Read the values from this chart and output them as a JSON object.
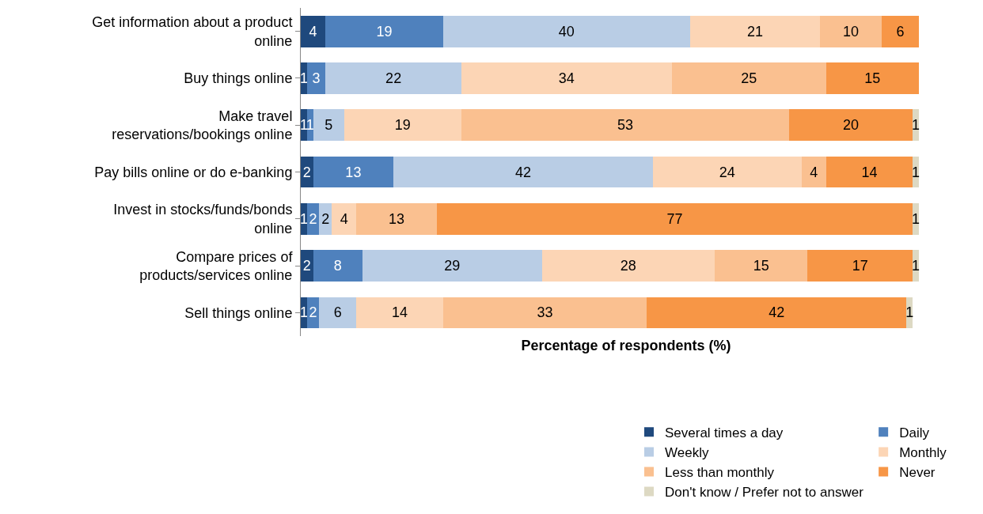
{
  "chart_data": {
    "type": "bar",
    "orientation": "horizontal",
    "stacked": true,
    "data_labels": true,
    "legend": "bottom",
    "tick_labels": "y",
    "xlabel": "Percentage of respondents (%)",
    "categories": [
      "Get information about a product online",
      "Buy things online",
      "Make travel reservations/bookings online",
      "Pay bills online or do e-banking",
      "Invest in stocks/funds/bonds online",
      "Compare prices of products/services online",
      "Sell things online"
    ],
    "series": [
      {
        "name": "Several times a day",
        "color": "#1f497d",
        "values": [
          4,
          1,
          1,
          2,
          1,
          2,
          1
        ]
      },
      {
        "name": "Daily",
        "color": "#4f81bd",
        "values": [
          19,
          3,
          1,
          13,
          2,
          8,
          2
        ]
      },
      {
        "name": "Weekly",
        "color": "#b9cde5",
        "values": [
          40,
          22,
          5,
          42,
          2,
          29,
          6
        ]
      },
      {
        "name": "Monthly",
        "color": "#fcd5b5",
        "values": [
          21,
          34,
          19,
          24,
          4,
          28,
          14
        ]
      },
      {
        "name": "Less than monthly",
        "color": "#fac090",
        "values": [
          10,
          25,
          53,
          4,
          13,
          15,
          33
        ]
      },
      {
        "name": "Never",
        "color": "#f79646",
        "values": [
          6,
          15,
          20,
          14,
          77,
          17,
          42
        ]
      },
      {
        "name": "Don't know / Prefer not to answer",
        "color": "#ddd9c3",
        "values": [
          null,
          null,
          1,
          1,
          1,
          1,
          1
        ]
      }
    ]
  }
}
